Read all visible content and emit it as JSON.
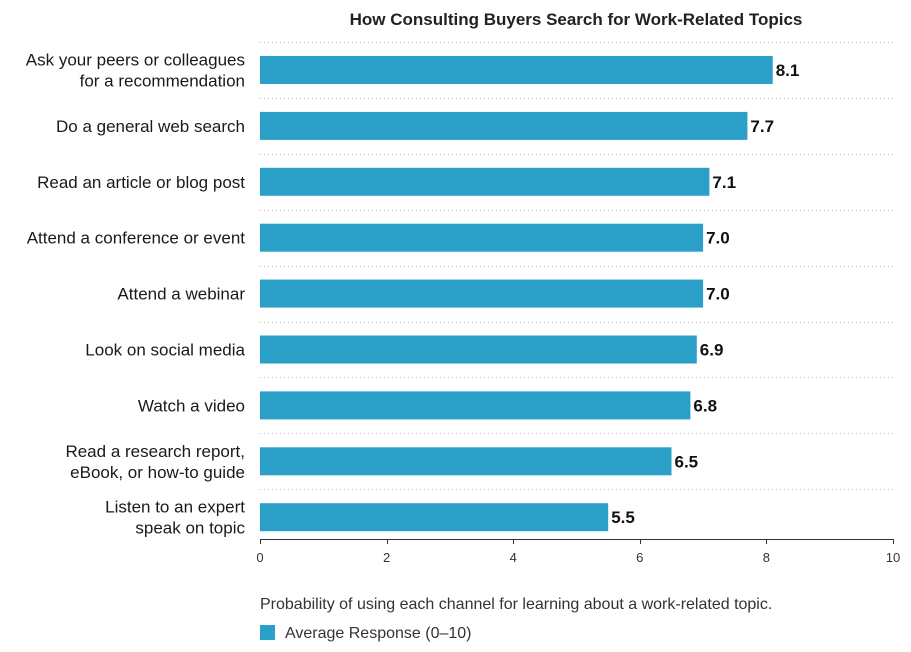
{
  "chart_data": {
    "type": "bar",
    "orientation": "horizontal",
    "title": "How Consulting Buyers Search for Work-Related Topics",
    "categories": [
      [
        "Ask your peers or colleagues",
        "for a recommendation"
      ],
      [
        "Do a general web search"
      ],
      [
        "Read an article or blog post"
      ],
      [
        "Attend a conference or event"
      ],
      [
        "Attend a webinar"
      ],
      [
        "Look on social media"
      ],
      [
        "Watch a video"
      ],
      [
        "Read a research report,",
        "eBook, or how-to guide"
      ],
      [
        "Listen to an expert",
        "speak on topic"
      ]
    ],
    "series": [
      {
        "name": "Average Response (0–10)",
        "values": [
          8.1,
          7.7,
          7.1,
          7.0,
          7.0,
          6.9,
          6.8,
          6.5,
          5.5
        ],
        "value_labels": [
          "8.1",
          "7.7",
          "7.1",
          "7.0",
          "7.0",
          "6.9",
          "6.8",
          "6.5",
          "5.5"
        ],
        "color": "#2aa0c8"
      }
    ],
    "xlim": [
      0,
      10
    ],
    "xticks": [
      0,
      2,
      4,
      6,
      8,
      10
    ],
    "xtick_labels": [
      "0",
      "2",
      "4",
      "6",
      "8",
      "10"
    ],
    "xlabel": "Probability of using each channel for learning about a work-related topic.",
    "ylabel": "",
    "grid": true,
    "legend_position": "bottom-left"
  },
  "colors": {
    "bar": "#2aa0c8",
    "text": "#1a1a1a",
    "grid": "#b8b8b8"
  }
}
